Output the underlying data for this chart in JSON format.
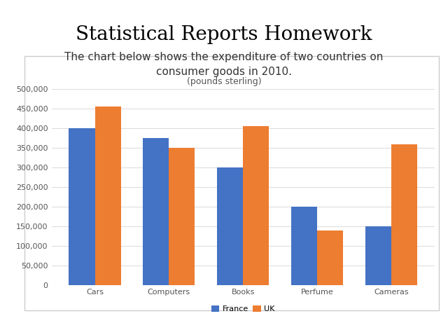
{
  "title": "Statistical Reports Homework",
  "chart_title_line1": "The chart below shows the expenditure of two countries on",
  "chart_title_line2": "consumer goods in 2010.",
  "chart_subtitle": "(pounds sterling)",
  "categories": [
    "Cars",
    "Computers",
    "Books",
    "Perfume",
    "Cameras"
  ],
  "france_values": [
    400000,
    375000,
    300000,
    200000,
    150000
  ],
  "uk_values": [
    455000,
    350000,
    405000,
    140000,
    360000
  ],
  "france_color": "#4472C4",
  "uk_color": "#ED7D31",
  "ylim": [
    0,
    500000
  ],
  "ytick_step": 50000,
  "bar_width": 0.35,
  "legend_labels": [
    "France",
    "UK"
  ],
  "outer_bg_color": "#FFFFFF",
  "chart_bg_color": "#FFFFFF",
  "chart_border_color": "#CCCCCC",
  "title_fontsize": 20,
  "chart_title_fontsize": 11,
  "chart_subtitle_fontsize": 9,
  "axis_label_fontsize": 8,
  "legend_fontsize": 8,
  "grid_color": "#DDDDDD",
  "tick_color": "#555555"
}
